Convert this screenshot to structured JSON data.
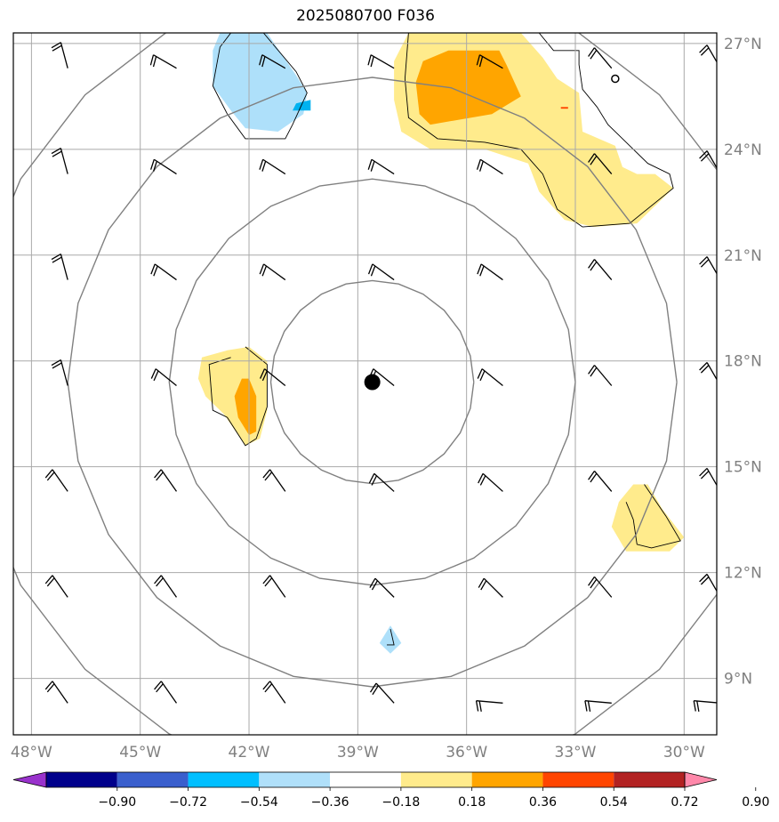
{
  "title": "2025080700 F036",
  "map": {
    "lon_range": [
      -48.5,
      -29.1
    ],
    "lat_range": [
      7.4,
      27.3
    ],
    "lon_ticks": [
      -48,
      -45,
      -42,
      -39,
      -36,
      -33,
      -30
    ],
    "lon_tick_labels": [
      "48°W",
      "45°W",
      "42°W",
      "39°W",
      "36°W",
      "33°W",
      "30°W"
    ],
    "lat_ticks": [
      9,
      12,
      15,
      18,
      21,
      24,
      27
    ],
    "lat_tick_labels": [
      "9°N",
      "12°N",
      "15°N",
      "18°N",
      "21°N",
      "24°N",
      "27°N"
    ],
    "center": {
      "lon": -38.6,
      "lat": 17.4
    },
    "range_rings_deg": [
      2.8,
      5.6,
      8.4,
      11.2
    ],
    "colors": {
      "grid": "#a9a9a9",
      "ring": "#808080",
      "light_blue": "#aee0fa",
      "blue": "#00b2f0",
      "light_yellow": "#ffeb8c",
      "orange": "#ffa500",
      "red_orange": "#ff4500"
    }
  },
  "colorbar": {
    "boundaries": [
      "−0.90",
      "−0.72",
      "−0.54",
      "−0.36",
      "−0.18",
      "0.18",
      "0.36",
      "0.54",
      "0.72",
      "0.90"
    ],
    "colors": [
      "#9932cc",
      "#00008b",
      "#3a5fcd",
      "#00bfff",
      "#b0e0fa",
      "#ffffff",
      "#ffeb8c",
      "#ffa500",
      "#ff4500",
      "#b22222",
      "#ff88aa"
    ]
  }
}
